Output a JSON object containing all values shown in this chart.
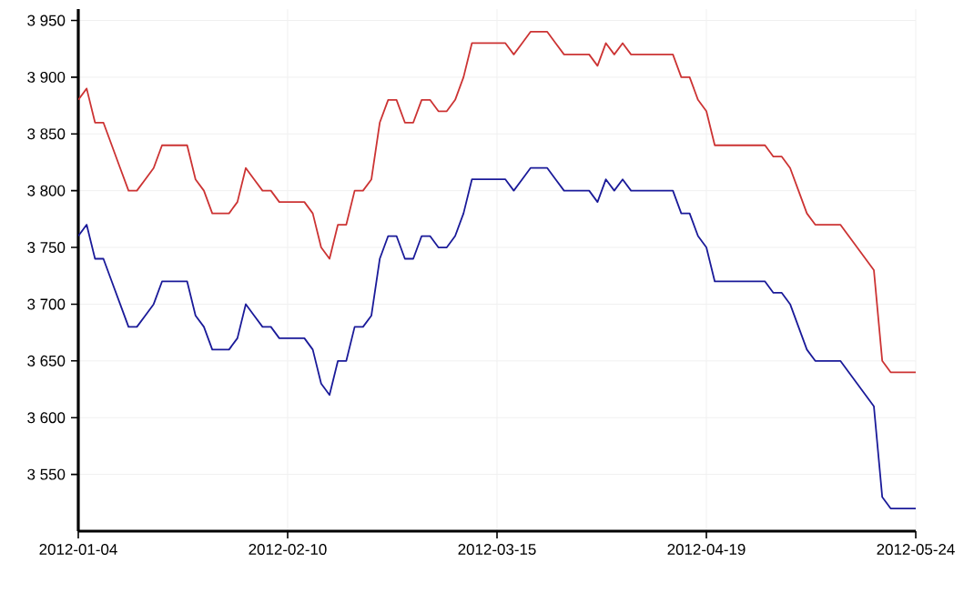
{
  "chart_data": {
    "type": "line",
    "categories": [
      "2012-01-04",
      null,
      null,
      null,
      null,
      null,
      null,
      null,
      null,
      null,
      null,
      null,
      null,
      null,
      null,
      null,
      null,
      null,
      null,
      null,
      null,
      null,
      null,
      null,
      null,
      "2012-02-10",
      null,
      null,
      null,
      null,
      null,
      null,
      null,
      null,
      null,
      null,
      null,
      null,
      null,
      null,
      null,
      null,
      null,
      null,
      null,
      null,
      null,
      null,
      null,
      null,
      "2012-03-15",
      null,
      null,
      null,
      null,
      null,
      null,
      null,
      null,
      null,
      null,
      null,
      null,
      null,
      null,
      null,
      null,
      null,
      null,
      null,
      null,
      null,
      null,
      null,
      null,
      "2012-04-19",
      null,
      null,
      null,
      null,
      null,
      null,
      null,
      null,
      null,
      null,
      null,
      null,
      null,
      null,
      null,
      null,
      null,
      null,
      null,
      null,
      null,
      null,
      null,
      null,
      "2012-05-24"
    ],
    "series": [
      {
        "color": "#cc3333",
        "values": [
          3880,
          3890,
          3860,
          3860,
          3840,
          3820,
          3800,
          3800,
          3810,
          3820,
          3840,
          3840,
          3840,
          3840,
          3810,
          3800,
          3780,
          3780,
          3780,
          3790,
          3820,
          3810,
          3800,
          3800,
          3790,
          3790,
          3790,
          3790,
          3780,
          3750,
          3740,
          3770,
          3770,
          3800,
          3800,
          3810,
          3860,
          3880,
          3880,
          3860,
          3860,
          3880,
          3880,
          3870,
          3870,
          3880,
          3900,
          3930,
          3930,
          3930,
          3930,
          3930,
          3920,
          3930,
          3940,
          3940,
          3940,
          3930,
          3920,
          3920,
          3920,
          3920,
          3910,
          3930,
          3920,
          3930,
          3920,
          3920,
          3920,
          3920,
          3920,
          3920,
          3900,
          3900,
          3880,
          3870,
          3840,
          3840,
          3840,
          3840,
          3840,
          3840,
          3840,
          3830,
          3830,
          3820,
          3800,
          3780,
          3770,
          3770,
          3770,
          3770,
          3760,
          3750,
          3740,
          3730,
          3650,
          3640,
          3640,
          3640,
          3640
        ]
      },
      {
        "color": "#1a1a99",
        "values": [
          3760,
          3770,
          3740,
          3740,
          3720,
          3700,
          3680,
          3680,
          3690,
          3700,
          3720,
          3720,
          3720,
          3720,
          3690,
          3680,
          3660,
          3660,
          3660,
          3670,
          3700,
          3690,
          3680,
          3680,
          3670,
          3670,
          3670,
          3670,
          3660,
          3630,
          3620,
          3650,
          3650,
          3680,
          3680,
          3690,
          3740,
          3760,
          3760,
          3740,
          3740,
          3760,
          3760,
          3750,
          3750,
          3760,
          3780,
          3810,
          3810,
          3810,
          3810,
          3810,
          3800,
          3810,
          3820,
          3820,
          3820,
          3810,
          3800,
          3800,
          3800,
          3800,
          3790,
          3810,
          3800,
          3810,
          3800,
          3800,
          3800,
          3800,
          3800,
          3800,
          3780,
          3780,
          3760,
          3750,
          3720,
          3720,
          3720,
          3720,
          3720,
          3720,
          3720,
          3710,
          3710,
          3700,
          3680,
          3660,
          3650,
          3650,
          3650,
          3650,
          3640,
          3630,
          3620,
          3610,
          3530,
          3520,
          3520,
          3520,
          3520
        ]
      }
    ],
    "ylim": [
      3500,
      3960
    ],
    "yticks": [
      {
        "value": 3550,
        "label": "3 550"
      },
      {
        "value": 3600,
        "label": "3 600"
      },
      {
        "value": 3650,
        "label": "3 650"
      },
      {
        "value": 3700,
        "label": "3 700"
      },
      {
        "value": 3750,
        "label": "3 750"
      },
      {
        "value": 3800,
        "label": "3 800"
      },
      {
        "value": 3850,
        "label": "3 850"
      },
      {
        "value": 3900,
        "label": "3 900"
      },
      {
        "value": 3950,
        "label": "3 950"
      }
    ],
    "grid": true
  }
}
